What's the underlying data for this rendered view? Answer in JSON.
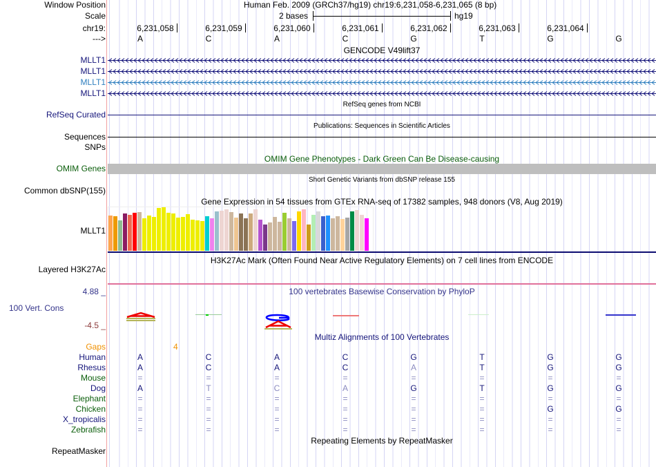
{
  "header": {
    "window_position_label": "Window Position",
    "window_position_value": "Human Feb. 2009 (GRCh37/hg19)   chr19:6,231,058-6,231,065 (8 bp)",
    "scale_label": "Scale",
    "scale_text": "2 bases",
    "scale_assembly": "hg19",
    "chrom_label": "chr19:",
    "strand_label": "--->",
    "positions": [
      "6,231,058",
      "6,231,059",
      "6,231,060",
      "6,231,061",
      "6,231,062",
      "6,231,063",
      "6,231,064"
    ],
    "bases": [
      "A",
      "C",
      "A",
      "C",
      "G",
      "T",
      "G",
      "G"
    ]
  },
  "tracks": {
    "gencode": {
      "title": "GENCODE V49lift37",
      "genes": [
        {
          "label": "MLLT1",
          "color": "#14147a"
        },
        {
          "label": "MLLT1",
          "color": "#14147a"
        },
        {
          "label": "MLLT1",
          "color": "#2f7fbf"
        },
        {
          "label": "MLLT1",
          "color": "#14147a"
        }
      ]
    },
    "refseq": {
      "title": "RefSeq genes from NCBI",
      "label": "RefSeq Curated"
    },
    "publications": {
      "title": "Publications: Sequences in Scientific Articles",
      "label": "Sequences"
    },
    "snps": {
      "label": "SNPs"
    },
    "omim": {
      "title": "OMIM Gene Phenotypes - Dark Green Can Be Disease-causing",
      "label": "OMIM Genes"
    },
    "dbsnp": {
      "title": "Short Genetic Variants from dbSNP release 155",
      "label": "Common dbSNP(155)"
    },
    "gtex": {
      "title": "Gene Expression in 54 tissues from GTEx RNA-seq of 17382 samples, 948 donors (V8, Aug 2019)",
      "label": "MLLT1",
      "values": [
        152,
        149,
        131,
        161,
        155,
        164,
        167,
        140,
        152,
        146,
        185,
        188,
        164,
        161,
        143,
        146,
        158,
        134,
        131,
        128,
        149,
        140,
        170,
        173,
        179,
        167,
        143,
        161,
        140,
        161,
        179,
        134,
        113,
        122,
        146,
        125,
        164,
        140,
        128,
        170,
        179,
        113,
        155,
        170,
        149,
        152,
        140,
        149,
        137,
        143,
        170,
        176,
        155,
        140
      ],
      "colors": [
        "#FFA54F",
        "#EE9A00",
        "#8FBC8F",
        "#8B1C62",
        "#EE6A50",
        "#FF0000",
        "#CDB79E",
        "#EEEE00",
        "#EEEE00",
        "#EEEE00",
        "#EEEE00",
        "#EEEE00",
        "#EEEE00",
        "#EEEE00",
        "#EEEE00",
        "#EEEE00",
        "#EEEE00",
        "#EEEE00",
        "#EEEE00",
        "#EEEE00",
        "#00CED1",
        "#EE82EE",
        "#9AC0CD",
        "#EED5D2",
        "#EED5D2",
        "#CDB79E",
        "#EEC591",
        "#8B7355",
        "#8B7355",
        "#CDAA7D",
        "#EED5D2",
        "#B452CD",
        "#7A378B",
        "#CDB79E",
        "#CDB79E",
        "#CDB79E",
        "#9ACD32",
        "#CDB79E",
        "#7B68EE",
        "#FFD700",
        "#FFB6C1",
        "#CD9B1D",
        "#B4EEB4",
        "#D9D9D9",
        "#3A5FCD",
        "#1E90FF",
        "#CDB79E",
        "#CDB79E",
        "#FFD39B",
        "#A6A6A6",
        "#008B45",
        "#EED5D2",
        "#EED5D2",
        "#FF00FF"
      ]
    },
    "h3k27ac": {
      "title": "H3K27Ac Mark (Often Found Near Active Regulatory Elements) on 7 cell lines from ENCODE",
      "label": "Layered H3K27Ac"
    },
    "phylop": {
      "title": "100 vertebrates Basewise Conservation by PhyloP",
      "label": "100 Vert. Cons",
      "max": "4.88 _",
      "min": "-4.5 _"
    },
    "multiz": {
      "title": "Multiz Alignments of 100 Vertebrates",
      "gaps_label": "Gaps",
      "gaps_value": "4",
      "species": [
        {
          "name": "Human",
          "color": "#14147a",
          "bases": [
            "A",
            "C",
            "A",
            "C",
            "G",
            "T",
            "G",
            "G"
          ]
        },
        {
          "name": "Rhesus",
          "color": "#14147a",
          "bases": [
            "A",
            "C",
            "A",
            "C",
            "A",
            "T",
            "G",
            "G"
          ],
          "faded": [
            4
          ]
        },
        {
          "name": "Mouse",
          "color": "#0a5d0a",
          "bases": [
            "=",
            "=",
            "=",
            "=",
            "=",
            "=",
            "=",
            "="
          ]
        },
        {
          "name": "Dog",
          "color": "#14147a",
          "bases": [
            "A",
            "T",
            "C",
            "A",
            "G",
            "T",
            "G",
            "G"
          ],
          "faded": [
            1,
            2,
            3
          ]
        },
        {
          "name": "Elephant",
          "color": "#0a5d0a",
          "bases": [
            "=",
            "=",
            "=",
            "=",
            "=",
            "=",
            "=",
            "="
          ]
        },
        {
          "name": "Chicken",
          "color": "#0a5d0a",
          "bases": [
            "=",
            "=",
            "=",
            "=",
            "=",
            "=",
            "G",
            "G"
          ]
        },
        {
          "name": "X_tropicalis",
          "color": "#14147a",
          "bases": [
            "=",
            "=",
            "=",
            "=",
            "=",
            "=",
            "=",
            "="
          ]
        },
        {
          "name": "Zebrafish",
          "color": "#0a5d0a",
          "bases": [
            "=",
            "=",
            "=",
            "=",
            "=",
            "=",
            "=",
            "="
          ]
        }
      ]
    },
    "repeatmasker": {
      "title": "Repeating Elements by RepeatMasker",
      "label": "RepeatMasker"
    }
  }
}
